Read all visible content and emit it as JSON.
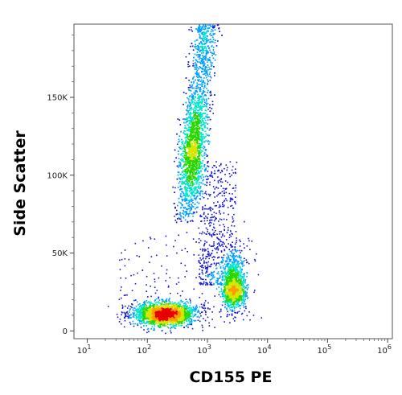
{
  "chart_data": {
    "type": "scatter",
    "subtype": "flow-cytometry-density-dot-plot",
    "xlabel": "CD155 PE",
    "ylabel": "Side Scatter",
    "x_scale": "log",
    "xlim": [
      6,
      1200000
    ],
    "ylim": [
      -5000,
      197000
    ],
    "x_ticks": [
      {
        "value": 10,
        "base": "10",
        "exp": "1"
      },
      {
        "value": 100,
        "base": "10",
        "exp": "2"
      },
      {
        "value": 1000,
        "base": "10",
        "exp": "3"
      },
      {
        "value": 10000,
        "base": "10",
        "exp": "4"
      },
      {
        "value": 100000,
        "base": "10",
        "exp": "5"
      },
      {
        "value": 1000000,
        "base": "10",
        "exp": "6"
      }
    ],
    "y_ticks": [
      {
        "value": 0,
        "label": "0"
      },
      {
        "value": 50000,
        "label": "50K"
      },
      {
        "value": 100000,
        "label": "100K"
      },
      {
        "value": 150000,
        "label": "150K"
      }
    ],
    "populations": [
      {
        "name_hint": "low-SSC cluster",
        "x_center": 190,
        "y_center": 11000,
        "x_log_sd": 0.2,
        "y_sd": 3500,
        "approx_events": 2600
      },
      {
        "name_hint": "high-SSC elongated cluster",
        "x_center": 560,
        "y_center": 115000,
        "x_log_sd": 0.1,
        "y_range": [
          70000,
          197000
        ],
        "approx_events": 3600
      },
      {
        "name_hint": "mid cluster",
        "x_center": 2700,
        "y_center": 32000,
        "x_log_sd": 0.09,
        "y_sd": 9000,
        "approx_events": 1400
      },
      {
        "name_hint": "connecting sparse events",
        "x_range": [
          700,
          3000
        ],
        "y_range": [
          30000,
          110000
        ],
        "approx_events": 600
      }
    ],
    "colormap": [
      "#1414d2",
      "#00a0ff",
      "#00e6c8",
      "#2bd600",
      "#d6e600",
      "#ff9900",
      "#e60000"
    ],
    "grid": false,
    "legend": "none"
  }
}
